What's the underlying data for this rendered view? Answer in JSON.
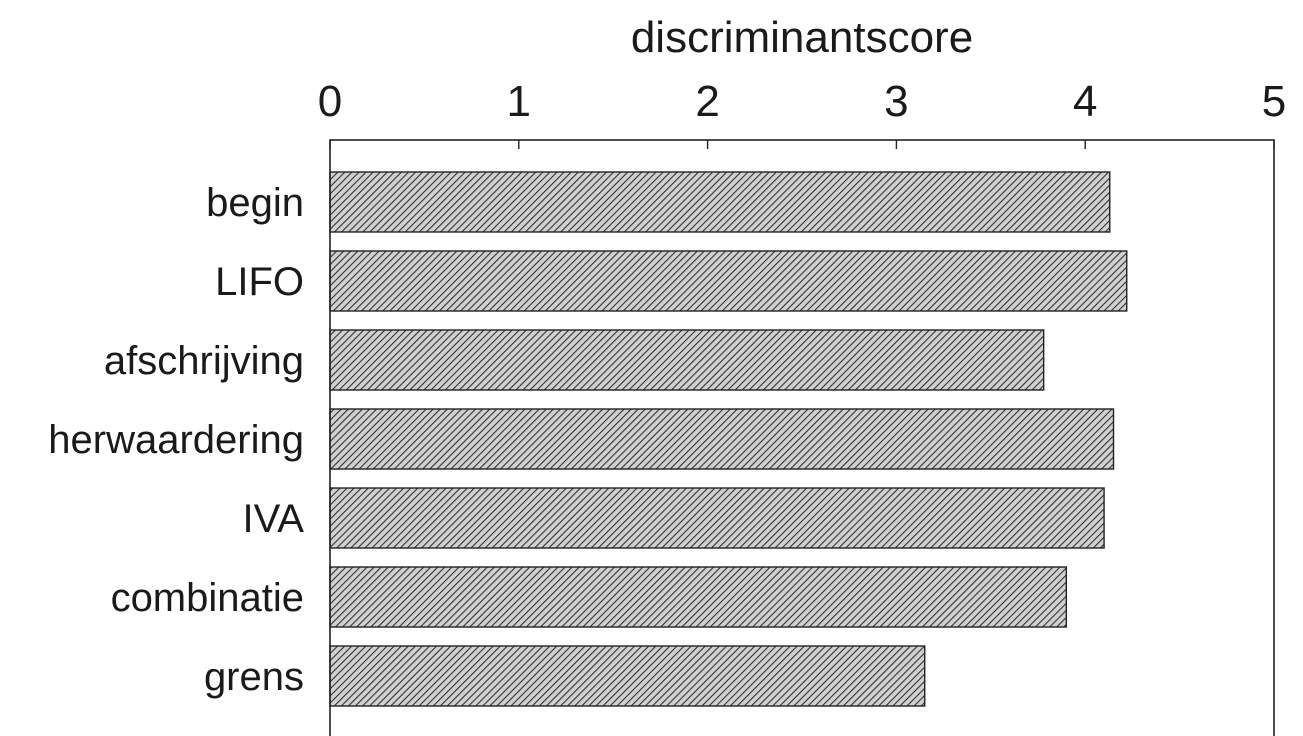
{
  "chart_data": {
    "type": "bar",
    "orientation": "horizontal",
    "xlabel": "discriminantscore",
    "xlim": [
      0,
      5
    ],
    "xticks": [
      "0",
      "1",
      "2",
      "3",
      "4",
      "5"
    ],
    "x_axis_position": "top",
    "categories": [
      "begin",
      "LIFO",
      "afschrijving",
      "herwaardering",
      "IVA",
      "combinatie",
      "grens"
    ],
    "values": [
      4.13,
      4.22,
      3.78,
      4.15,
      4.1,
      3.9,
      3.15
    ],
    "bar_fill": "hatched",
    "colors": {
      "bar_hatch": "#333333",
      "bar_background": "#d0d0d0",
      "axis": "#222222"
    },
    "grid": false,
    "legend": "none"
  }
}
